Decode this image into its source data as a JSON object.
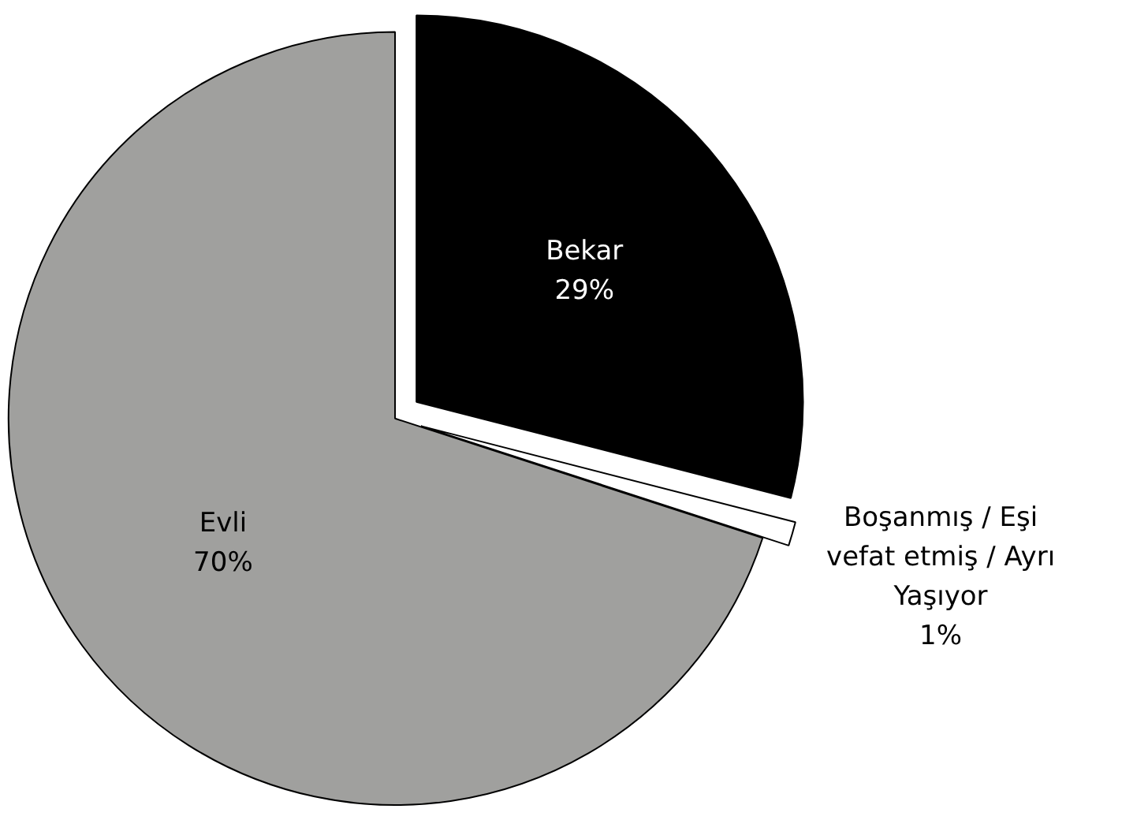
{
  "chart_data": {
    "type": "pie",
    "categories": [
      "Bekar",
      "Boşanmış / Eşi vefat etmiş / Ayrı Yaşıyor",
      "Evli"
    ],
    "values": [
      29,
      1,
      70
    ],
    "colors": [
      "#000000",
      "#ffffff",
      "#a0a09e"
    ],
    "value_labels": [
      "29%",
      "1%",
      "70%"
    ]
  }
}
